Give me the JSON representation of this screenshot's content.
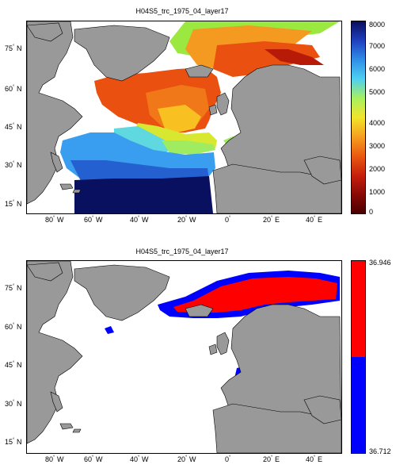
{
  "panels": [
    {
      "title": "H04S5_trc_1975_04_layer17",
      "colorbar": {
        "type": "continuous",
        "colors": [
          "#0a0f5c",
          "#1f3fbf",
          "#2f8fe8",
          "#4fd0f0",
          "#a8f060",
          "#f2e52a",
          "#f6a020",
          "#ea5a10",
          "#c8200c",
          "#8a0a06",
          "#4a0000"
        ],
        "ticks": [
          "8000",
          "7000",
          "6000",
          "5000",
          "4000",
          "3000",
          "2000",
          "1000",
          "0"
        ]
      }
    },
    {
      "title": "H04S5_trc_1975_04_layer17",
      "colorbar": {
        "type": "binary",
        "colors": [
          "#ff0000",
          "#0000ff"
        ],
        "ticks": [
          "36.946",
          "36.712"
        ]
      }
    }
  ],
  "axes": {
    "lat_labels": [
      "75",
      "60",
      "45",
      "30",
      "15"
    ],
    "lat_hemisphere": "N",
    "lon_labels": [
      {
        "value": "80",
        "hem": "W"
      },
      {
        "value": "60",
        "hem": "W"
      },
      {
        "value": "40",
        "hem": "W"
      },
      {
        "value": "20",
        "hem": "W"
      },
      {
        "value": "0",
        "hem": ""
      },
      {
        "value": "20",
        "hem": "E"
      },
      {
        "value": "40",
        "hem": "E"
      }
    ]
  },
  "colors": {
    "land": "#999999",
    "ocean": "#ffffff"
  }
}
